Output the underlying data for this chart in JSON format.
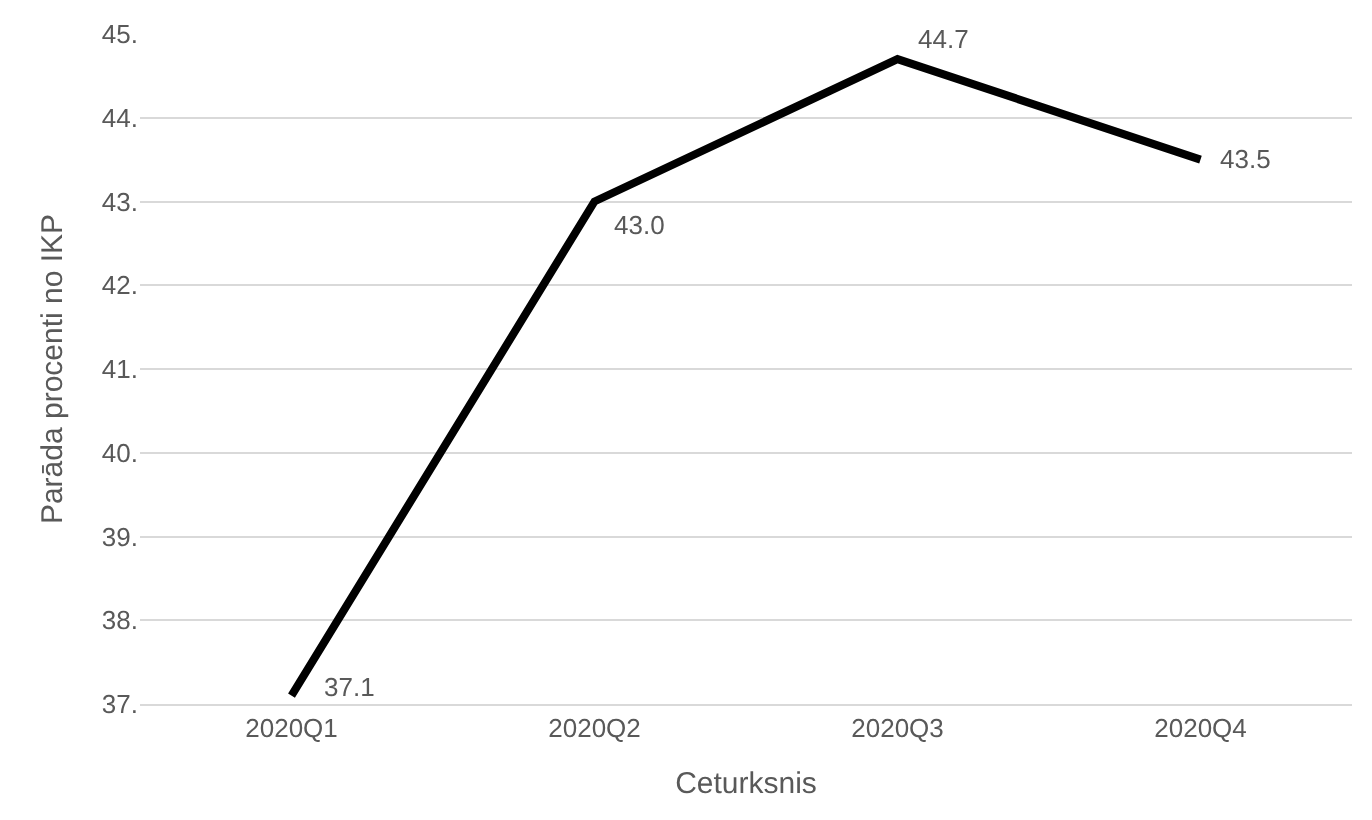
{
  "chart_data": {
    "type": "line",
    "xlabel": "Ceturksnis",
    "ylabel": "Parāda procenti no IKP",
    "categories": [
      "2020Q1",
      "2020Q2",
      "2020Q3",
      "2020Q4"
    ],
    "series": [
      {
        "color": "#000000",
        "values": [
          37.1,
          43.0,
          44.7,
          43.5
        ],
        "value_labels": [
          "37.1",
          "43.0",
          "44.7",
          "43.5"
        ]
      }
    ],
    "ylim": [
      37,
      45
    ],
    "yticks": [
      {
        "value": 37,
        "label": "37."
      },
      {
        "value": 38,
        "label": "38."
      },
      {
        "value": 39,
        "label": "39."
      },
      {
        "value": 40,
        "label": "40."
      },
      {
        "value": 41,
        "label": "41."
      },
      {
        "value": 42,
        "label": "42."
      },
      {
        "value": 43,
        "label": "43."
      },
      {
        "value": 44,
        "label": "44."
      },
      {
        "value": 45,
        "label": "45."
      }
    ],
    "grid": "y",
    "legend": false,
    "marker": "none",
    "line_style": "solid"
  }
}
